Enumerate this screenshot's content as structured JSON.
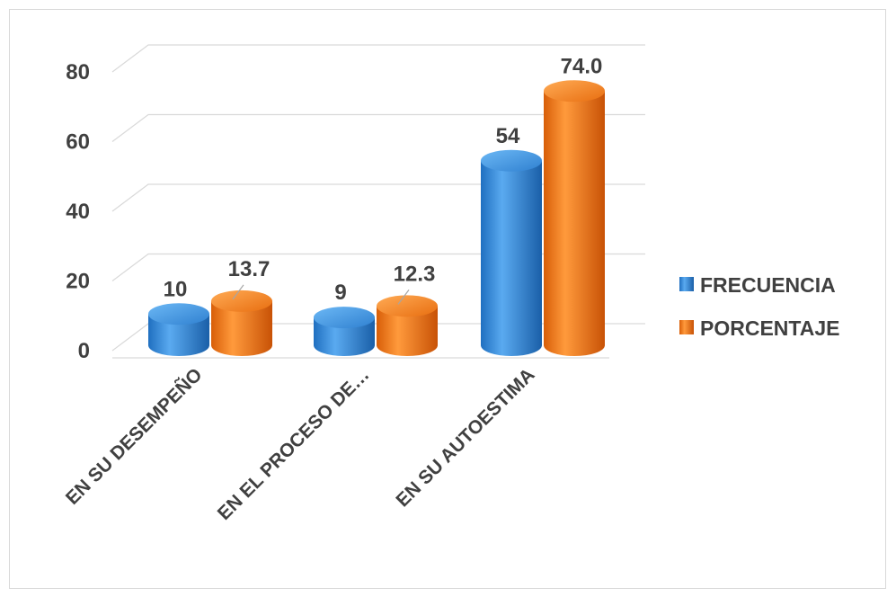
{
  "chart_data": {
    "type": "bar",
    "title": "",
    "xlabel": "",
    "ylabel": "",
    "categories": [
      "EN SU DESEMPEÑO",
      "EN EL PROCESO DE…",
      "EN SU AUTOESTIMA"
    ],
    "series": [
      {
        "name": "FRECUENCIA",
        "values": [
          10,
          9,
          54
        ],
        "labels": [
          "10",
          "9",
          "54"
        ],
        "color": "#3b8ee0"
      },
      {
        "name": "PORCENTAJE",
        "values": [
          13.7,
          12.3,
          74.0
        ],
        "labels": [
          "13.7",
          "12.3",
          "74.0"
        ],
        "color": "#f07818"
      }
    ],
    "yticks": [
      "0",
      "20",
      "40",
      "60",
      "80"
    ],
    "ylim": [
      0,
      80
    ],
    "grid": true,
    "legend": "right",
    "style": "3d-cylinder"
  }
}
